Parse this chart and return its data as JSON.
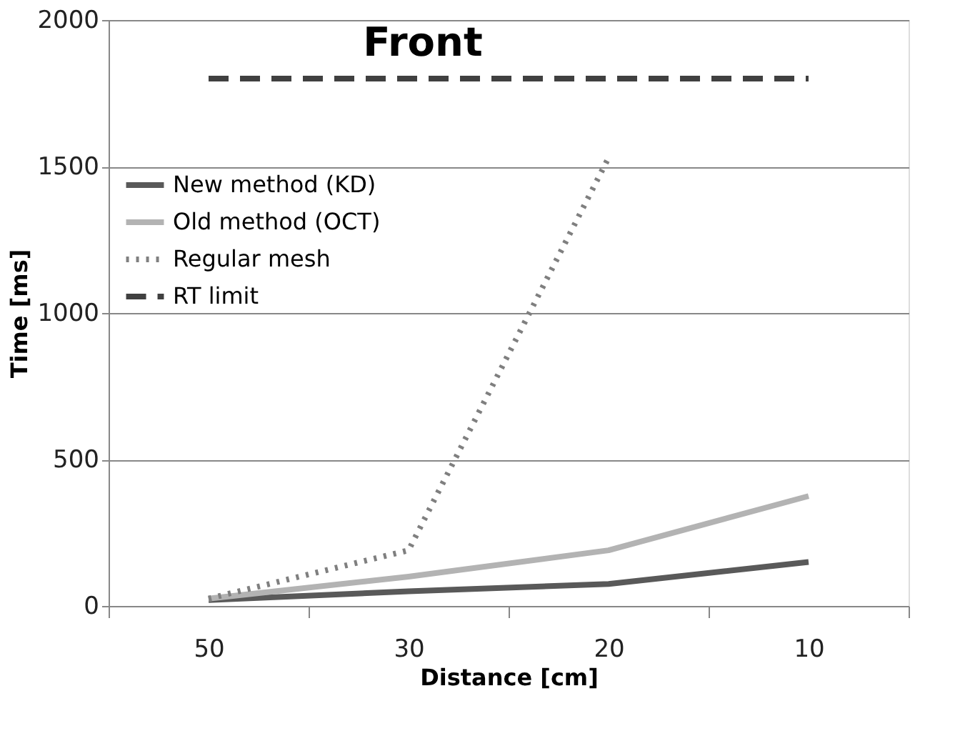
{
  "chart_data": {
    "type": "line",
    "title": "Front",
    "xlabel": "Distance [cm]",
    "ylabel": "Time [ms]",
    "categories": [
      "50",
      "30",
      "20",
      "10"
    ],
    "series": [
      {
        "name": "New method (KD)",
        "color": "#595959",
        "line_style": "solid",
        "values": [
          20,
          50,
          75,
          150
        ]
      },
      {
        "name": "Old method (OCT)",
        "color": "#b3b3b3",
        "line_style": "solid",
        "values": [
          25,
          100,
          190,
          375
        ]
      },
      {
        "name": "Regular mesh",
        "color": "#7f7f7f",
        "line_style": "dotted",
        "values": [
          25,
          190,
          1530,
          null
        ]
      },
      {
        "name": "RT limit",
        "color": "#404040",
        "line_style": "dashed",
        "values": [
          1800,
          1800,
          1800,
          1800
        ]
      }
    ],
    "ylim": [
      0,
      2000
    ],
    "yticks": [
      0,
      500,
      1000,
      1500,
      2000
    ],
    "grid": "y",
    "legend": "left",
    "marker": "none"
  }
}
